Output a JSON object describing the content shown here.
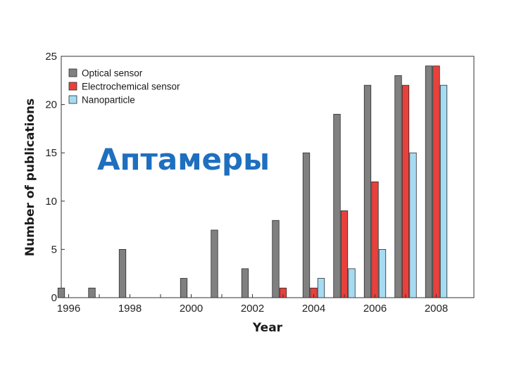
{
  "chart_data": {
    "type": "bar",
    "title": "Аптамеры",
    "xlabel": "Year",
    "ylabel": "Number of publications",
    "categories": [
      "1996",
      "1997",
      "1998",
      "1999",
      "2000",
      "2001",
      "2002",
      "2003",
      "2004",
      "2005",
      "2006",
      "2007",
      "2008"
    ],
    "x_tick_labels": [
      "1996",
      "1998",
      "2000",
      "2002",
      "2004",
      "2006",
      "2008"
    ],
    "y_ticks": [
      "0",
      "5",
      "10",
      "15",
      "20",
      "25"
    ],
    "ylim": [
      0,
      25
    ],
    "legend_position": "top-left",
    "grid": false,
    "series": [
      {
        "name": "Optical sensor",
        "color": "#808080",
        "values": [
          1,
          1,
          5,
          0,
          2,
          7,
          3,
          8,
          15,
          19,
          22,
          23,
          24
        ]
      },
      {
        "name": "Electrochemical sensor",
        "color": "#e8413c",
        "values": [
          0,
          0,
          0,
          0,
          0,
          0,
          0,
          1,
          1,
          9,
          12,
          22,
          24
        ]
      },
      {
        "name": "Nanoparticle",
        "color": "#a6dcf2",
        "values": [
          0,
          0,
          0,
          0,
          0,
          0,
          0,
          0,
          2,
          3,
          5,
          15,
          22
        ]
      }
    ]
  }
}
